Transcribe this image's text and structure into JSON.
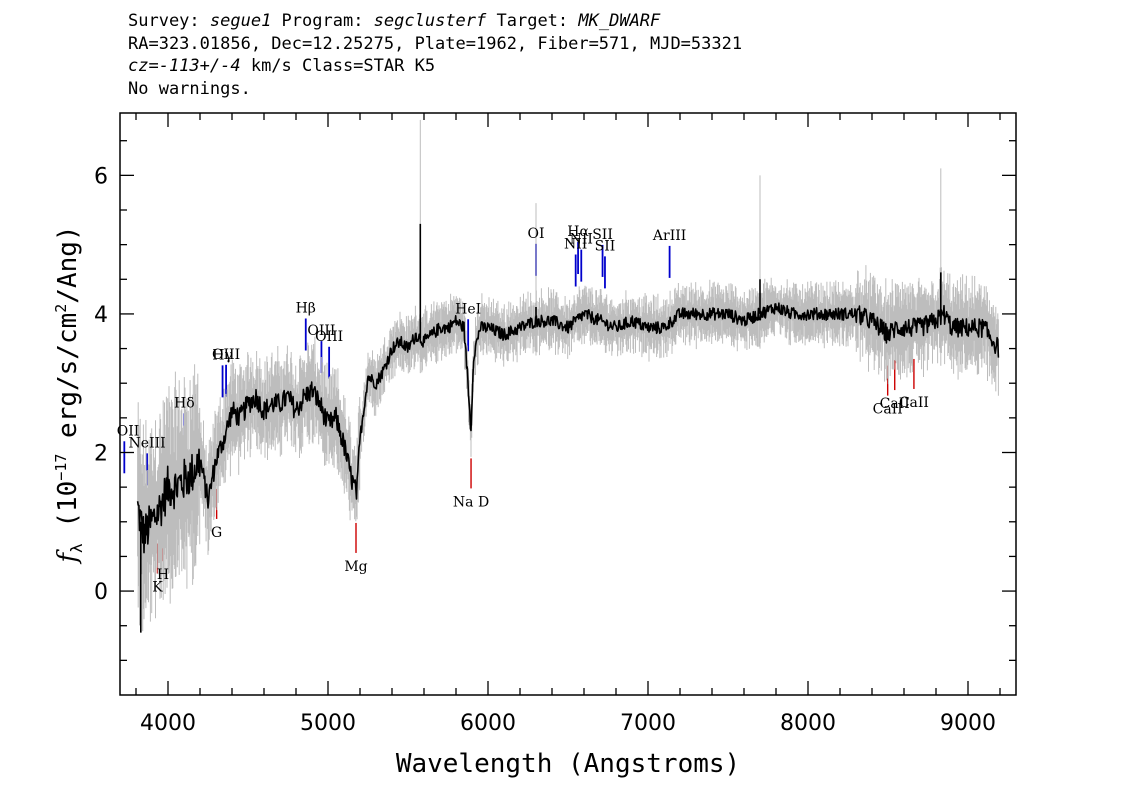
{
  "header": {
    "line1": {
      "survey_label": "Survey: ",
      "survey": "segue1",
      "program_label": " Program: ",
      "program": "segclusterf",
      "target_label": " Target: ",
      "target": "MK_DWARF"
    },
    "line2": "RA=323.01856, Dec=12.25275, Plate=1962, Fiber=571, MJD=53321",
    "line3": {
      "cz": "cz=-113+/-4",
      "rest": " km/s Class=STAR K5"
    },
    "line4": "No warnings."
  },
  "chart_data": {
    "type": "line",
    "xlabel": "Wavelength (Angstroms)",
    "ylabel_parts": {
      "f": "f",
      "lambda": "λ",
      "open": " (10",
      "exp1": "−17",
      "mid": " erg/s/cm",
      "exp2": "2",
      "close": "/Ang)"
    },
    "xlim": [
      3700,
      9300
    ],
    "ylim": [
      -1.5,
      6.9
    ],
    "x_ticks": [
      4000,
      5000,
      6000,
      7000,
      8000,
      9000
    ],
    "y_ticks": [
      0,
      2,
      4,
      6
    ],
    "colors": {
      "flux": "#000000",
      "error": "#bdbdbd",
      "emission": "#0000cc",
      "absorption": "#cc0000"
    },
    "flux_anchors": [
      [
        3810,
        1.2
      ],
      [
        3850,
        0.8
      ],
      [
        3900,
        1.0
      ],
      [
        3950,
        1.2
      ],
      [
        4000,
        1.5
      ],
      [
        4050,
        1.5
      ],
      [
        4100,
        1.6
      ],
      [
        4150,
        1.7
      ],
      [
        4200,
        1.9
      ],
      [
        4250,
        1.3
      ],
      [
        4300,
        1.9
      ],
      [
        4350,
        2.2
      ],
      [
        4400,
        2.6
      ],
      [
        4450,
        2.5
      ],
      [
        4500,
        2.7
      ],
      [
        4550,
        2.8
      ],
      [
        4600,
        2.6
      ],
      [
        4650,
        2.7
      ],
      [
        4700,
        2.7
      ],
      [
        4750,
        2.8
      ],
      [
        4800,
        2.6
      ],
      [
        4850,
        2.8
      ],
      [
        4900,
        2.9
      ],
      [
        4950,
        2.7
      ],
      [
        5000,
        2.4
      ],
      [
        5050,
        2.5
      ],
      [
        5100,
        2.1
      ],
      [
        5150,
        1.6
      ],
      [
        5180,
        1.4
      ],
      [
        5200,
        2.2
      ],
      [
        5250,
        3.1
      ],
      [
        5300,
        3.0
      ],
      [
        5350,
        3.2
      ],
      [
        5400,
        3.5
      ],
      [
        5450,
        3.6
      ],
      [
        5500,
        3.5
      ],
      [
        5550,
        3.7
      ],
      [
        5600,
        3.6
      ],
      [
        5650,
        3.7
      ],
      [
        5700,
        3.8
      ],
      [
        5750,
        3.8
      ],
      [
        5800,
        3.9
      ],
      [
        5850,
        3.8
      ],
      [
        5875,
        3.0
      ],
      [
        5893,
        2.3
      ],
      [
        5910,
        3.4
      ],
      [
        5950,
        3.8
      ],
      [
        6000,
        3.8
      ],
      [
        6100,
        3.7
      ],
      [
        6200,
        3.8
      ],
      [
        6300,
        3.9
      ],
      [
        6400,
        3.9
      ],
      [
        6500,
        3.8
      ],
      [
        6600,
        4.0
      ],
      [
        6700,
        3.9
      ],
      [
        6800,
        3.8
      ],
      [
        6900,
        3.9
      ],
      [
        7000,
        3.8
      ],
      [
        7100,
        3.8
      ],
      [
        7200,
        4.0
      ],
      [
        7300,
        4.0
      ],
      [
        7400,
        4.0
      ],
      [
        7500,
        4.0
      ],
      [
        7600,
        3.9
      ],
      [
        7700,
        4.0
      ],
      [
        7800,
        4.1
      ],
      [
        7900,
        4.0
      ],
      [
        8000,
        4.0
      ],
      [
        8100,
        4.0
      ],
      [
        8200,
        4.0
      ],
      [
        8300,
        4.0
      ],
      [
        8400,
        3.9
      ],
      [
        8500,
        3.7
      ],
      [
        8550,
        3.8
      ],
      [
        8650,
        3.8
      ],
      [
        8700,
        3.8
      ],
      [
        8800,
        3.9
      ],
      [
        8850,
        4.0
      ],
      [
        8900,
        3.8
      ],
      [
        9000,
        3.8
      ],
      [
        9100,
        3.8
      ],
      [
        9190,
        3.5
      ]
    ],
    "flux_spikes": [
      [
        5577,
        5.3
      ],
      [
        8830,
        4.6
      ],
      [
        6300,
        4.1
      ],
      [
        3830,
        -0.6
      ],
      [
        7700,
        4.5
      ]
    ],
    "emission_lines": [
      {
        "label": "OII",
        "wave": 3727
      },
      {
        "label": "NeIII",
        "wave": 3869
      },
      {
        "label": "Hδ",
        "wave": 4102
      },
      {
        "label": "Hγ",
        "wave": 4341
      },
      {
        "label": "OIII",
        "wave": 4363
      },
      {
        "label": "Hβ",
        "wave": 4861
      },
      {
        "label": "OIII",
        "wave": 4959
      },
      {
        "label": "OIII",
        "wave": 5007
      },
      {
        "label": "HeI",
        "wave": 5876
      },
      {
        "label": "OI",
        "wave": 6300
      },
      {
        "label": "NII",
        "wave": 6548
      },
      {
        "label": "Hα",
        "wave": 6563
      },
      {
        "label": "NII",
        "wave": 6583
      },
      {
        "label": "SII",
        "wave": 6716
      },
      {
        "label": "SII",
        "wave": 6731
      },
      {
        "label": "ArIII",
        "wave": 7135
      }
    ],
    "absorption_lines": [
      {
        "label": "K",
        "wave": 3934
      },
      {
        "label": "H",
        "wave": 3969
      },
      {
        "label": "G",
        "wave": 4304
      },
      {
        "label": "Mg",
        "wave": 5175
      },
      {
        "label": "Na D",
        "wave": 5894
      },
      {
        "label": "CaII",
        "wave": 8498
      },
      {
        "label": "CaII",
        "wave": 8542
      },
      {
        "label": "CaII",
        "wave": 8662
      }
    ]
  }
}
